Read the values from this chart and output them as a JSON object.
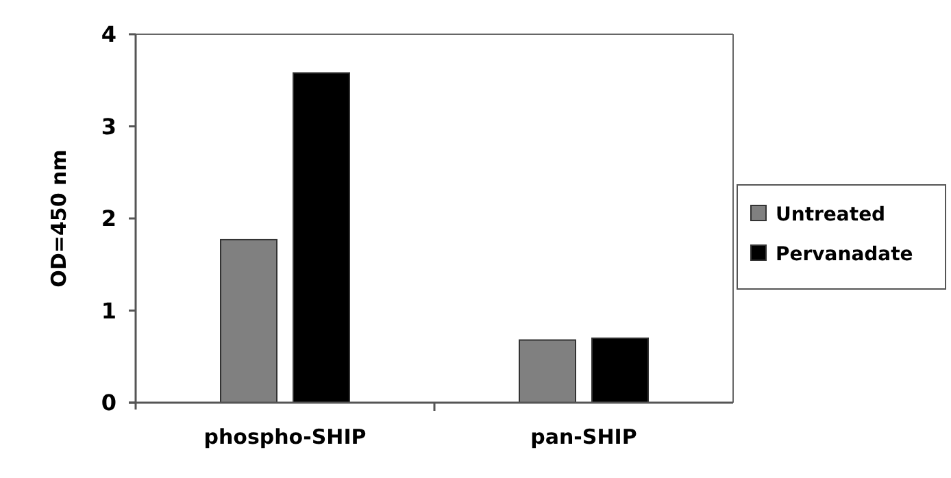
{
  "chart_data": {
    "type": "bar",
    "ylabel": "OD=450 nm",
    "categories": [
      "phospho-SHIP",
      "pan-SHIP"
    ],
    "series": [
      {
        "name": "Untreated",
        "color": "#808080",
        "values": [
          1.77,
          0.68
        ]
      },
      {
        "name": "Pervanadate",
        "color": "#000000",
        "values": [
          3.58,
          0.7
        ]
      }
    ],
    "ylim": [
      0,
      4
    ],
    "yticks": [
      0,
      1,
      2,
      3,
      4
    ],
    "grid": false,
    "legend": "right"
  }
}
